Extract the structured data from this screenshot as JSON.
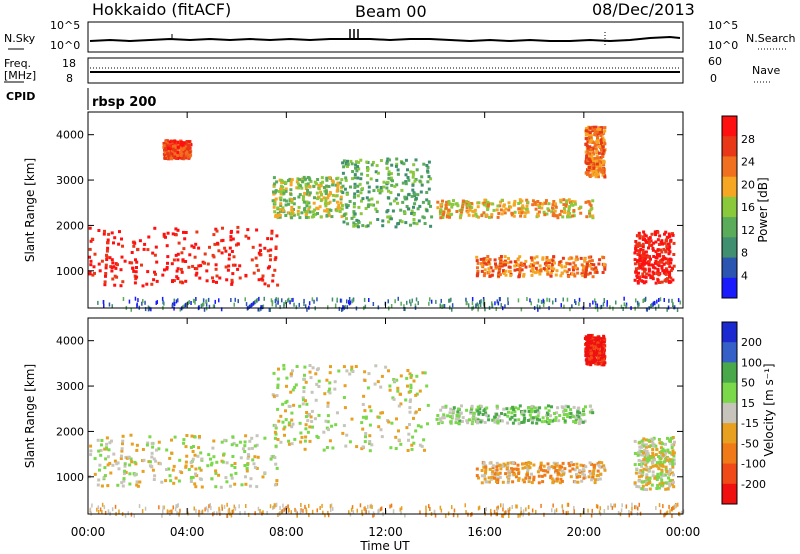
{
  "header": {
    "station": "Hokkaido (fitACF)",
    "beam": "Beam 00",
    "date": "08/Dec/2013"
  },
  "labels": {
    "nsky": "N.Sky",
    "nsearch": "N.Search",
    "freq": "Freq.",
    "freq_unit": "[MHz]",
    "nave": "Nave",
    "cpid": "CPID",
    "cpid_value": "rbsp 200",
    "log_hi": "10^5",
    "log_lo": "10^0",
    "freq_hi": "18",
    "freq_lo": "8",
    "nave_hi": "60",
    "nave_lo": "0"
  },
  "colors": {
    "power": [
      "#1a1aff",
      "#2a55b0",
      "#3f8f70",
      "#5aab5a",
      "#8ac83c",
      "#f5a623",
      "#f07020",
      "#e83818",
      "#ff1010"
    ],
    "velocity": [
      "#1a2ad0",
      "#3560c8",
      "#49a84a",
      "#7ad84a",
      "#c7c4bc",
      "#e8a020",
      "#f07a18",
      "#f04a18",
      "#f01010"
    ]
  },
  "chart_data": [
    {
      "type": "heatmap",
      "name": "power",
      "xlabel": "",
      "ylabel": "Slant Range [km]",
      "xlim": [
        0,
        24
      ],
      "ylim": [
        180,
        4500
      ],
      "x_ticks": [
        "00:00",
        "04:00",
        "08:00",
        "12:00",
        "16:00",
        "20:00",
        "00:00"
      ],
      "y_ticks": [
        1000,
        2000,
        3000,
        4000
      ],
      "colorbar_label": "Power [dB]",
      "colorbar_ticks": [
        4,
        8,
        12,
        16,
        20,
        24,
        28
      ],
      "regions": [
        {
          "x": [
            0,
            7.6
          ],
          "y": [
            700,
            2000
          ],
          "level": 8
        },
        {
          "x": [
            7.4,
            10.2
          ],
          "y": [
            2200,
            3100
          ],
          "level": 4
        },
        {
          "x": [
            10.2,
            13.8
          ],
          "y": [
            2000,
            3500
          ],
          "level": 3
        },
        {
          "x": [
            14.0,
            20.4
          ],
          "y": [
            2200,
            2600
          ],
          "level": 5
        },
        {
          "x": [
            15.6,
            20.8
          ],
          "y": [
            900,
            1350
          ],
          "level": 6
        },
        {
          "x": [
            22.0,
            23.6
          ],
          "y": [
            750,
            1900
          ],
          "level": 8
        },
        {
          "x": [
            20.0,
            20.8
          ],
          "y": [
            3100,
            4200
          ],
          "level": 6
        },
        {
          "x": [
            3.0,
            4.1
          ],
          "y": [
            3500,
            3900
          ],
          "level": 7
        }
      ]
    },
    {
      "type": "heatmap",
      "name": "velocity",
      "xlabel": "Time UT",
      "ylabel": "Slant Range [km]",
      "xlim": [
        0,
        24
      ],
      "ylim": [
        180,
        4500
      ],
      "x_ticks": [
        "00:00",
        "04:00",
        "08:00",
        "12:00",
        "16:00",
        "20:00",
        "00:00"
      ],
      "y_ticks": [
        1000,
        2000,
        3000,
        4000
      ],
      "colorbar_label": "Velocity [m s⁻¹]",
      "colorbar_ticks": [
        200,
        100,
        50,
        15,
        -15,
        -50,
        -100,
        -200
      ],
      "regions": [
        {
          "x": [
            0,
            7.6
          ],
          "y": [
            800,
            1950
          ],
          "level": 4
        },
        {
          "x": [
            7.4,
            13.8
          ],
          "y": [
            1600,
            3500
          ],
          "level": 4
        },
        {
          "x": [
            14.0,
            20.4
          ],
          "y": [
            2200,
            2600
          ],
          "level": 3
        },
        {
          "x": [
            15.6,
            20.8
          ],
          "y": [
            900,
            1350
          ],
          "level": 5
        },
        {
          "x": [
            20.0,
            20.8
          ],
          "y": [
            3500,
            4150
          ],
          "level": 8
        },
        {
          "x": [
            22.0,
            23.6
          ],
          "y": [
            750,
            1900
          ],
          "level": 4
        }
      ]
    }
  ]
}
